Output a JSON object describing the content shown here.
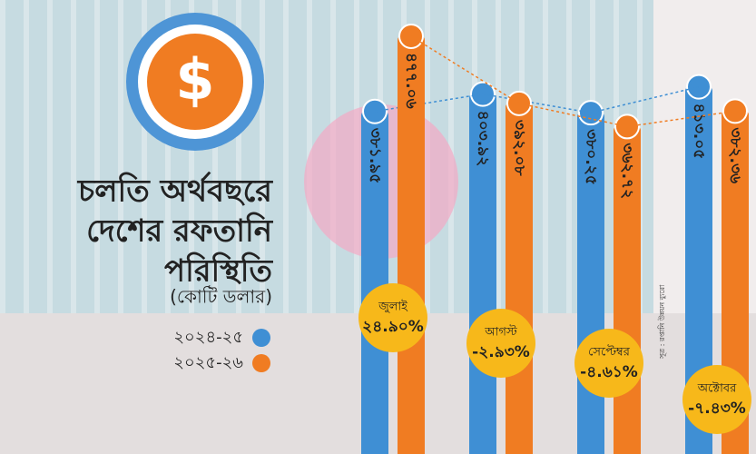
{
  "chart_data": {
    "type": "bar",
    "title": [
      "চলতি অর্থবছরে",
      "দেশের রফতানি",
      "পরিস্থিতি"
    ],
    "subtitle": "(কোটি ডলার)",
    "categories": [
      "জুলাই",
      "আগস্ট",
      "সেপ্টেম্বর",
      "অক্টোবর"
    ],
    "series": [
      {
        "name": "২০২৪-২৫",
        "color": "#3f8fd4",
        "values": [
          381.95,
          403.92,
          380.25,
          413.05
        ],
        "value_labels": [
          "৩৮১.৯৫",
          "৪০৩.৯২",
          "৩৮০.২৫",
          "৪১৩.০৫"
        ]
      },
      {
        "name": "২০২৫-২৬",
        "color": "#f07c22",
        "values": [
          477.06,
          392.08,
          362.72,
          382.36
        ],
        "value_labels": [
          "৪৭৭.০৬",
          "৩৯২.০৮",
          "৩৬২.৭২",
          "৩৮২.৩৬"
        ]
      }
    ],
    "growth": {
      "values": [
        24.9,
        -2.93,
        -4.61,
        -7.43
      ],
      "value_labels": [
        "২৪.৯০%",
        "-২.৯৩%",
        "-৪.৬১%",
        "-৭.৪৩%"
      ],
      "color": "#f7b81a"
    },
    "source": "সূত্র : রপ্তানি উন্নয়ন ব্যুরো"
  }
}
